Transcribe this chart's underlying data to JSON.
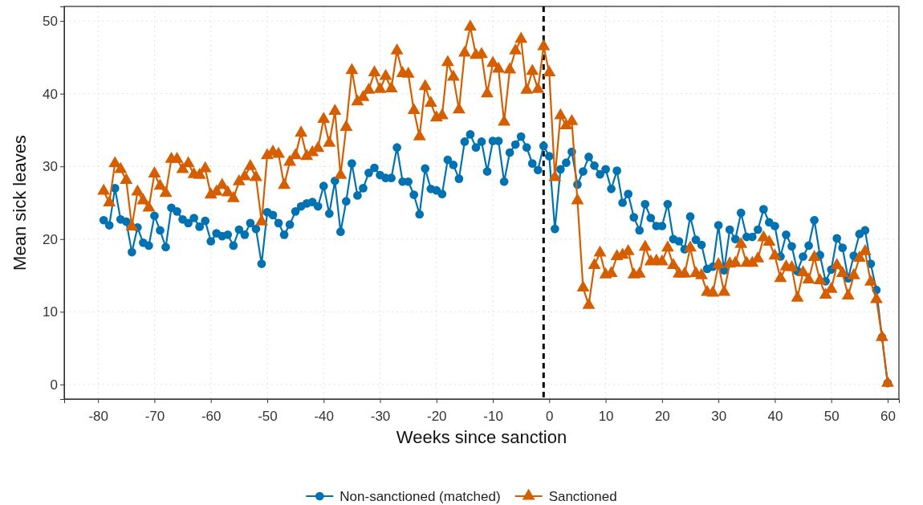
{
  "chart_data": {
    "type": "line",
    "xlabel": "Weeks since sanction",
    "ylabel": "Mean sick leaves",
    "x": [
      -79,
      -78,
      -77,
      -76,
      -75,
      -74,
      -73,
      -72,
      -71,
      -70,
      -69,
      -68,
      -67,
      -66,
      -65,
      -64,
      -63,
      -62,
      -61,
      -60,
      -59,
      -58,
      -57,
      -56,
      -55,
      -54,
      -53,
      -52,
      -51,
      -50,
      -49,
      -48,
      -47,
      -46,
      -45,
      -44,
      -43,
      -42,
      -41,
      -40,
      -39,
      -38,
      -37,
      -36,
      -35,
      -34,
      -33,
      -32,
      -31,
      -30,
      -29,
      -28,
      -27,
      -26,
      -25,
      -24,
      -23,
      -22,
      -21,
      -20,
      -19,
      -18,
      -17,
      -16,
      -15,
      -14,
      -13,
      -12,
      -11,
      -10,
      -9,
      -8,
      -7,
      -6,
      -5,
      -4,
      -3,
      -2,
      -1,
      0,
      1,
      2,
      3,
      4,
      5,
      6,
      7,
      8,
      9,
      10,
      11,
      12,
      13,
      14,
      15,
      16,
      17,
      18,
      19,
      20,
      21,
      22,
      23,
      24,
      25,
      26,
      27,
      28,
      29,
      30,
      31,
      32,
      33,
      34,
      35,
      36,
      37,
      38,
      39,
      40,
      41,
      42,
      43,
      44,
      45,
      46,
      47,
      48,
      49,
      50,
      51,
      52,
      53,
      54,
      55,
      56,
      57,
      58,
      59,
      60
    ],
    "series": [
      {
        "name": "Non-sanctioned (matched)",
        "color": "#0072b2",
        "marker": "circle",
        "values": [
          22.6,
          21.9,
          27.0,
          22.7,
          22.4,
          18.2,
          21.6,
          19.5,
          19.1,
          23.2,
          21.2,
          18.9,
          24.3,
          23.8,
          22.7,
          22.2,
          22.9,
          21.7,
          22.5,
          19.7,
          20.8,
          20.4,
          20.6,
          19.1,
          21.3,
          20.6,
          22.2,
          21.4,
          16.6,
          23.7,
          23.3,
          22.2,
          20.6,
          22.0,
          23.8,
          24.5,
          24.9,
          25.1,
          24.5,
          27.3,
          23.5,
          28.0,
          21.0,
          25.2,
          30.4,
          26.0,
          27.0,
          29.1,
          29.8,
          28.8,
          28.4,
          28.4,
          32.6,
          27.9,
          27.9,
          26.1,
          23.4,
          29.7,
          26.9,
          26.7,
          26.2,
          30.9,
          30.2,
          28.3,
          33.4,
          34.4,
          32.6,
          33.4,
          29.3,
          33.5,
          33.5,
          27.9,
          31.9,
          33.0,
          34.1,
          32.6,
          30.4,
          29.5,
          32.8,
          31.4,
          21.4,
          29.6,
          30.5,
          32.0,
          27.5,
          29.3,
          31.3,
          30.1,
          28.9,
          29.6,
          26.9,
          29.4,
          25.0,
          26.2,
          23.0,
          21.2,
          24.8,
          22.9,
          21.8,
          21.8,
          24.8,
          20.0,
          19.7,
          18.6,
          23.1,
          19.9,
          19.2,
          15.9,
          16.2,
          21.9,
          15.7,
          21.3,
          20.0,
          23.6,
          20.3,
          20.3,
          21.3,
          24.1,
          22.3,
          21.8,
          17.6,
          20.6,
          19.0,
          15.6,
          17.6,
          19.1,
          22.6,
          17.8,
          14.2,
          15.8,
          20.1,
          18.8,
          14.6,
          17.7,
          20.7,
          21.2,
          16.6,
          13.0,
          6.5,
          0.2
        ]
      },
      {
        "name": "Sanctioned",
        "color": "#d55e00",
        "marker": "triangle",
        "values": [
          26.6,
          25.0,
          30.4,
          29.6,
          28.1,
          21.7,
          26.5,
          25.3,
          24.3,
          29.0,
          27.3,
          26.3,
          31.0,
          31.0,
          29.6,
          30.4,
          28.9,
          28.8,
          29.7,
          26.1,
          26.5,
          27.4,
          26.4,
          25.6,
          27.9,
          28.6,
          30.0,
          28.5,
          22.4,
          31.5,
          32.0,
          31.7,
          27.4,
          30.6,
          31.5,
          34.6,
          31.4,
          31.9,
          32.5,
          36.5,
          33.2,
          37.6,
          28.8,
          35.4,
          43.2,
          38.9,
          39.5,
          40.5,
          42.9,
          40.6,
          42.4,
          40.7,
          45.9,
          42.8,
          42.7,
          37.7,
          34.1,
          41.0,
          38.7,
          36.7,
          37.0,
          44.3,
          42.3,
          37.8,
          45.6,
          49.2,
          45.3,
          45.4,
          40.0,
          44.2,
          43.4,
          36.1,
          43.3,
          45.9,
          47.5,
          40.5,
          43.1,
          40.6,
          46.5,
          42.9,
          28.5,
          37.0,
          35.6,
          36.2,
          25.3,
          13.3,
          10.9,
          16.4,
          18.1,
          15.1,
          15.3,
          17.6,
          17.8,
          18.3,
          15.1,
          15.2,
          18.9,
          16.9,
          17.0,
          16.9,
          18.8,
          16.4,
          15.2,
          15.2,
          18.8,
          15.3,
          15.0,
          12.7,
          12.6,
          16.5,
          12.7,
          16.6,
          16.7,
          19.3,
          16.7,
          16.7,
          17.3,
          20.2,
          19.6,
          17.7,
          14.6,
          16.2,
          16.1,
          11.9,
          15.4,
          14.4,
          17.5,
          14.3,
          12.3,
          13.1,
          16.4,
          15.3,
          12.2,
          15.0,
          17.4,
          18.3,
          14.1,
          11.7,
          6.5,
          0.2
        ]
      }
    ],
    "xlim": [
      -86,
      62
    ],
    "ylim": [
      -2,
      52
    ],
    "xticks": [
      -80,
      -70,
      -60,
      -50,
      -40,
      -30,
      -20,
      -10,
      0,
      10,
      20,
      30,
      40,
      50,
      60
    ],
    "yticks": [
      0,
      10,
      20,
      30,
      40,
      50
    ],
    "grid": true,
    "legend": "bottom",
    "line_style": "solid",
    "ref_lines": [
      {
        "axis": "x",
        "value": -1,
        "color": "#000000",
        "line_style": "dashed"
      }
    ]
  }
}
